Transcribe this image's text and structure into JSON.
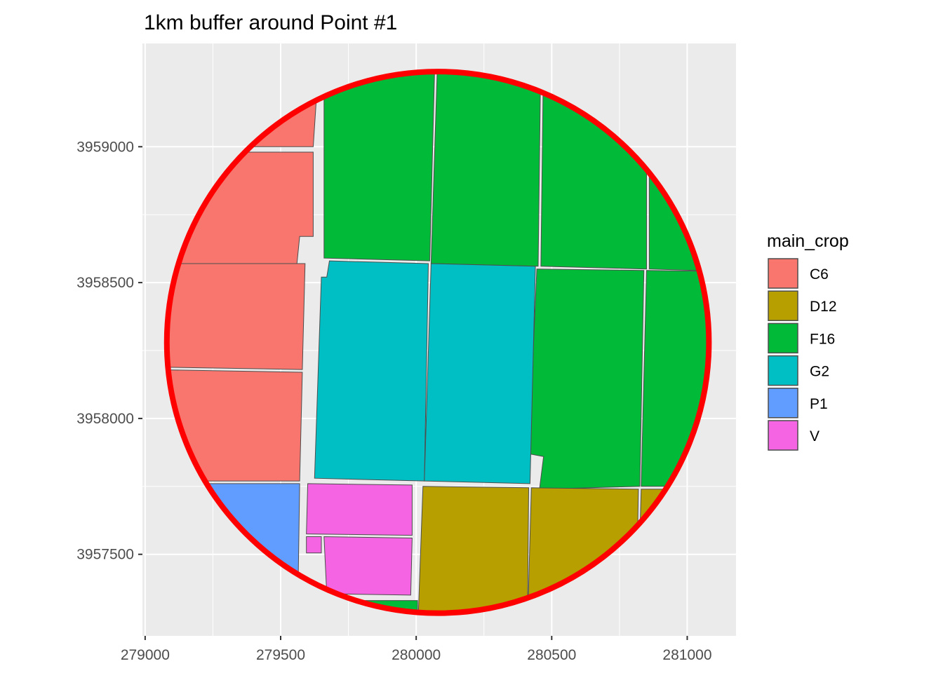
{
  "chart_data": {
    "type": "map",
    "title": "1km buffer around Point #1",
    "xlabel": "",
    "ylabel": "",
    "xlim": [
      278990,
      281180
    ],
    "ylim": [
      3957200,
      3959380
    ],
    "x_ticks": [
      279000,
      279500,
      280000,
      280500,
      281000
    ],
    "y_ticks": [
      3957500,
      3958000,
      3958500,
      3959000
    ],
    "x_tick_labels": [
      "279000",
      "279500",
      "280000",
      "280500",
      "281000"
    ],
    "y_tick_labels": [
      "3957500",
      "3958000",
      "3958500",
      "3959000"
    ],
    "grid": true,
    "panel_background": "#ebebeb",
    "legend": {
      "title": "main_crop",
      "position": "right",
      "items": [
        {
          "label": "C6",
          "color": "#F8766D"
        },
        {
          "label": "D12",
          "color": "#B79F00"
        },
        {
          "label": "F16",
          "color": "#00BA38"
        },
        {
          "label": "G2",
          "color": "#00BFC4"
        },
        {
          "label": "P1",
          "color": "#619CFF"
        },
        {
          "label": "V",
          "color": "#F564E3"
        }
      ]
    },
    "buffer": {
      "center_x": 280080,
      "center_y": 3958280,
      "radius_m": 1000,
      "color": "#FF0000"
    },
    "fields": [
      {
        "crop": "C6",
        "coords": [
          [
            279000,
            3959300
          ],
          [
            279640,
            3959300
          ],
          [
            279620,
            3959000
          ],
          [
            279000,
            3959000
          ]
        ]
      },
      {
        "crop": "C6",
        "coords": [
          [
            279000,
            3958980
          ],
          [
            279620,
            3958980
          ],
          [
            279620,
            3958670
          ],
          [
            279570,
            3958670
          ],
          [
            279560,
            3958570
          ],
          [
            279000,
            3958570
          ]
        ]
      },
      {
        "crop": "C6",
        "coords": [
          [
            279000,
            3958570
          ],
          [
            279590,
            3958570
          ],
          [
            279580,
            3958180
          ],
          [
            279000,
            3958190
          ]
        ]
      },
      {
        "crop": "C6",
        "coords": [
          [
            279000,
            3958180
          ],
          [
            279580,
            3958170
          ],
          [
            279570,
            3957770
          ],
          [
            279000,
            3957770
          ]
        ]
      },
      {
        "crop": "P1",
        "coords": [
          [
            279000,
            3957760
          ],
          [
            279570,
            3957760
          ],
          [
            279565,
            3957420
          ],
          [
            279000,
            3957420
          ]
        ]
      },
      {
        "crop": "V",
        "coords": [
          [
            279600,
            3957760
          ],
          [
            279985,
            3957755
          ],
          [
            279985,
            3957570
          ],
          [
            279595,
            3957575
          ]
        ]
      },
      {
        "crop": "V",
        "coords": [
          [
            279595,
            3957565
          ],
          [
            279650,
            3957565
          ],
          [
            279650,
            3957505
          ],
          [
            279595,
            3957505
          ]
        ]
      },
      {
        "crop": "V",
        "coords": [
          [
            279660,
            3957565
          ],
          [
            279985,
            3957560
          ],
          [
            279980,
            3957350
          ],
          [
            279670,
            3957355
          ]
        ]
      },
      {
        "crop": "F16",
        "coords": [
          [
            279640,
            3957330
          ],
          [
            280005,
            3957330
          ],
          [
            280005,
            3957200
          ],
          [
            279640,
            3957200
          ]
        ]
      },
      {
        "crop": "F16",
        "coords": [
          [
            279660,
            3959360
          ],
          [
            280070,
            3959360
          ],
          [
            280050,
            3958580
          ],
          [
            279660,
            3958590
          ]
        ]
      },
      {
        "crop": "F16",
        "coords": [
          [
            280080,
            3959360
          ],
          [
            280460,
            3959360
          ],
          [
            280450,
            3958560
          ],
          [
            280055,
            3958570
          ]
        ]
      },
      {
        "crop": "F16",
        "coords": [
          [
            280470,
            3959360
          ],
          [
            280850,
            3959360
          ],
          [
            280850,
            3958550
          ],
          [
            280460,
            3958560
          ]
        ]
      },
      {
        "crop": "F16",
        "coords": [
          [
            280860,
            3959360
          ],
          [
            281180,
            3959360
          ],
          [
            281180,
            3958540
          ],
          [
            280860,
            3958550
          ]
        ]
      },
      {
        "crop": "F16",
        "coords": [
          [
            280445,
            3958550
          ],
          [
            280840,
            3958545
          ],
          [
            280825,
            3957750
          ],
          [
            280455,
            3957740
          ],
          [
            280470,
            3957860
          ],
          [
            280415,
            3957870
          ]
        ]
      },
      {
        "crop": "F16",
        "coords": [
          [
            280850,
            3958545
          ],
          [
            281180,
            3958540
          ],
          [
            281180,
            3957750
          ],
          [
            280830,
            3957750
          ]
        ]
      },
      {
        "crop": "G2",
        "coords": [
          [
            279680,
            3958580
          ],
          [
            280045,
            3958570
          ],
          [
            280030,
            3957770
          ],
          [
            279625,
            3957780
          ],
          [
            279650,
            3958520
          ],
          [
            279670,
            3958520
          ]
        ]
      },
      {
        "crop": "G2",
        "coords": [
          [
            280055,
            3958570
          ],
          [
            280440,
            3958560
          ],
          [
            280420,
            3957760
          ],
          [
            280030,
            3957770
          ]
        ]
      },
      {
        "crop": "D12",
        "coords": [
          [
            280025,
            3957750
          ],
          [
            280415,
            3957745
          ],
          [
            280410,
            3957200
          ],
          [
            280005,
            3957200
          ]
        ]
      },
      {
        "crop": "D12",
        "coords": [
          [
            280425,
            3957745
          ],
          [
            280820,
            3957740
          ],
          [
            280810,
            3957200
          ],
          [
            280410,
            3957200
          ]
        ]
      },
      {
        "crop": "D12",
        "coords": [
          [
            280830,
            3957740
          ],
          [
            281180,
            3957740
          ],
          [
            281180,
            3957200
          ],
          [
            280815,
            3957200
          ]
        ]
      }
    ]
  }
}
